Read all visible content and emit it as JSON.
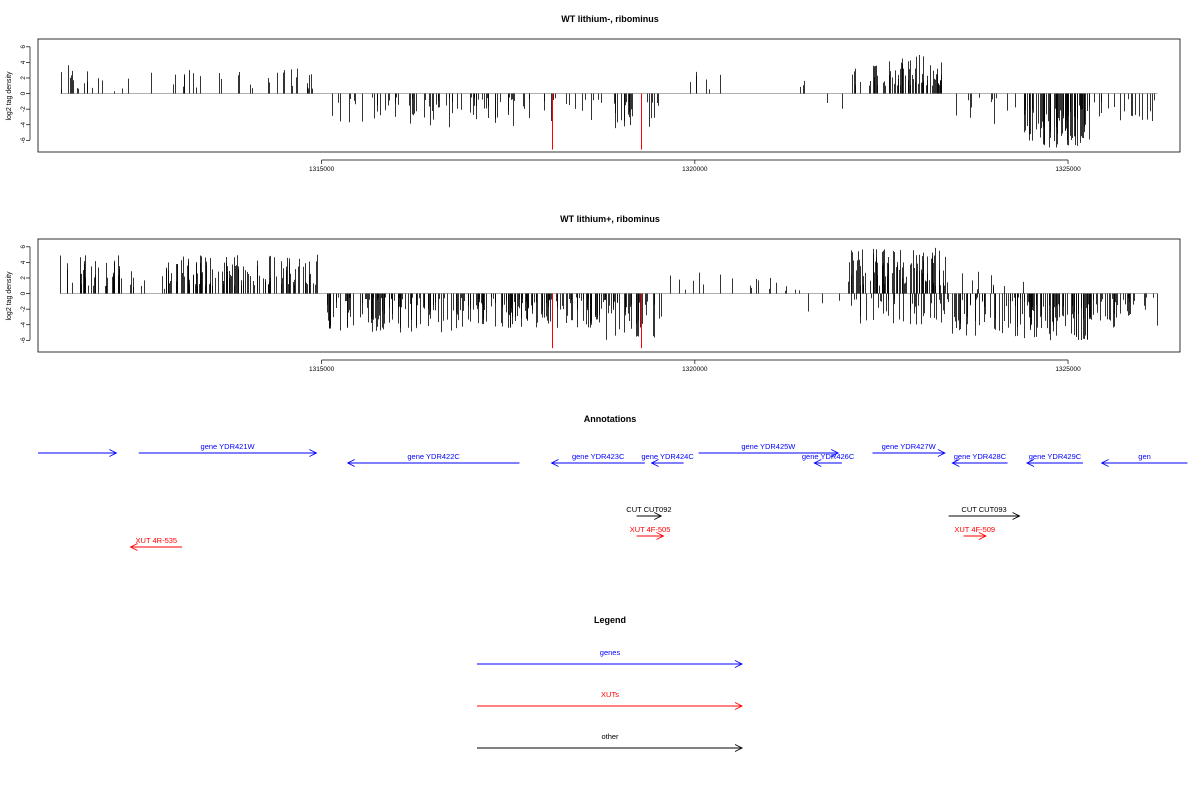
{
  "chart_data": [
    {
      "type": "bar",
      "title": "WT lithium-, ribominus",
      "xlabel": "",
      "ylabel": "log2 tag density",
      "xlim": [
        1311200,
        1326500
      ],
      "ylim": [
        -7.5,
        7
      ],
      "yticks": [
        6,
        4,
        2,
        0,
        -2,
        -4,
        -6
      ],
      "xticks": [
        1315000,
        1320000,
        1325000
      ],
      "xtick_labels": [
        "1315000",
        "1320000",
        "1325000"
      ],
      "grid": false,
      "colors": {
        "bars": "#000000",
        "highlight": "#ff0000",
        "baseline": "#808080"
      },
      "highlights": [
        {
          "x": 1318080,
          "value": -7.2
        },
        {
          "x": 1319280,
          "value": -7.2
        }
      ],
      "segments": [
        {
          "from": 1311500,
          "to": 1311750,
          "sign": 1,
          "min": 0.5,
          "max": 3.8,
          "density": 0.035
        },
        {
          "from": 1311750,
          "to": 1312000,
          "sign": 1,
          "min": 0.5,
          "max": 3.0,
          "density": 0.02
        },
        {
          "from": 1312000,
          "to": 1312700,
          "sign": 1,
          "min": 0.3,
          "max": 2.0,
          "density": 0.006
        },
        {
          "from": 1312700,
          "to": 1313700,
          "sign": 1,
          "min": 0.5,
          "max": 3.5,
          "density": 0.012
        },
        {
          "from": 1313700,
          "to": 1314200,
          "sign": 1,
          "min": 0.5,
          "max": 3.0,
          "density": 0.008
        },
        {
          "from": 1314200,
          "to": 1314950,
          "sign": 1,
          "min": 0.5,
          "max": 3.5,
          "density": 0.02
        },
        {
          "from": 1315050,
          "to": 1316000,
          "sign": -1,
          "min": 0.5,
          "max": 4.0,
          "density": 0.02
        },
        {
          "from": 1316000,
          "to": 1317800,
          "sign": -1,
          "min": 0.5,
          "max": 4.5,
          "density": 0.03
        },
        {
          "from": 1317800,
          "to": 1318800,
          "sign": -1,
          "min": 0.5,
          "max": 4.0,
          "density": 0.015
        },
        {
          "from": 1318800,
          "to": 1319550,
          "sign": -1,
          "min": 1.0,
          "max": 5.0,
          "density": 0.03
        },
        {
          "from": 1319700,
          "to": 1320800,
          "sign": 1,
          "min": 0.5,
          "max": 2.8,
          "density": 0.005
        },
        {
          "from": 1320800,
          "to": 1321500,
          "sign": 1,
          "min": 0.3,
          "max": 2.0,
          "density": 0.004
        },
        {
          "from": 1321500,
          "to": 1322050,
          "sign": -1,
          "min": 0.5,
          "max": 2.5,
          "density": 0.003
        },
        {
          "from": 1322100,
          "to": 1323300,
          "sign": 1,
          "min": 1.0,
          "max": 5.0,
          "density": 0.06
        },
        {
          "from": 1323400,
          "to": 1324300,
          "sign": -1,
          "min": 0.5,
          "max": 4.0,
          "density": 0.012
        },
        {
          "from": 1324400,
          "to": 1325300,
          "sign": -1,
          "min": 1.5,
          "max": 7.0,
          "density": 0.09
        },
        {
          "from": 1325300,
          "to": 1326200,
          "sign": -1,
          "min": 0.5,
          "max": 4.0,
          "density": 0.02
        }
      ]
    },
    {
      "type": "bar",
      "title": "WT lithium+, ribominus",
      "xlabel": "",
      "ylabel": "log2 tag density",
      "xlim": [
        1311200,
        1326500
      ],
      "ylim": [
        -7.5,
        7
      ],
      "yticks": [
        6,
        4,
        2,
        0,
        -2,
        -4,
        -6
      ],
      "xticks": [
        1315000,
        1320000,
        1325000
      ],
      "xtick_labels": [
        "1315000",
        "1320000",
        "1325000"
      ],
      "grid": false,
      "colors": {
        "bars": "#000000",
        "highlight": "#ff0000",
        "baseline": "#808080"
      },
      "highlights": [
        {
          "x": 1318080,
          "value": -7.0
        },
        {
          "x": 1319280,
          "value": -7.0
        }
      ],
      "segments": [
        {
          "from": 1311500,
          "to": 1312300,
          "sign": 1,
          "min": 0.8,
          "max": 5.0,
          "density": 0.05
        },
        {
          "from": 1312300,
          "to": 1312900,
          "sign": 1,
          "min": 0.5,
          "max": 3.5,
          "density": 0.015
        },
        {
          "from": 1312900,
          "to": 1314950,
          "sign": 1,
          "min": 1.0,
          "max": 5.0,
          "density": 0.06
        },
        {
          "from": 1315050,
          "to": 1316800,
          "sign": -1,
          "min": 0.5,
          "max": 5.0,
          "density": 0.06
        },
        {
          "from": 1316800,
          "to": 1318800,
          "sign": -1,
          "min": 0.5,
          "max": 4.5,
          "density": 0.07
        },
        {
          "from": 1318800,
          "to": 1319550,
          "sign": -1,
          "min": 1.0,
          "max": 6.0,
          "density": 0.05
        },
        {
          "from": 1319600,
          "to": 1321500,
          "sign": 1,
          "min": 0.3,
          "max": 2.8,
          "density": 0.01
        },
        {
          "from": 1321500,
          "to": 1322050,
          "sign": -1,
          "min": 0.5,
          "max": 2.5,
          "density": 0.005
        },
        {
          "from": 1322050,
          "to": 1323400,
          "sign": 1,
          "min": 1.0,
          "max": 6.0,
          "density": 0.07
        },
        {
          "from": 1322050,
          "to": 1323400,
          "sign": -1,
          "min": 0.5,
          "max": 4.0,
          "density": 0.03
        },
        {
          "from": 1323400,
          "to": 1324400,
          "sign": -1,
          "min": 0.5,
          "max": 5.5,
          "density": 0.05
        },
        {
          "from": 1323500,
          "to": 1324400,
          "sign": 1,
          "min": 0.3,
          "max": 3.0,
          "density": 0.01
        },
        {
          "from": 1324400,
          "to": 1325300,
          "sign": -1,
          "min": 1.0,
          "max": 6.0,
          "density": 0.08
        },
        {
          "from": 1325300,
          "to": 1326200,
          "sign": -1,
          "min": 0.5,
          "max": 4.5,
          "density": 0.04
        }
      ]
    }
  ],
  "annotations": {
    "title": "Annotations",
    "features": [
      {
        "label": "",
        "kind": "gene",
        "strand": "+",
        "start": 1311200,
        "end": 1312250
      },
      {
        "label": "gene YDR421W",
        "kind": "gene",
        "strand": "+",
        "start": 1312550,
        "end": 1314930
      },
      {
        "label": "gene YDR422C",
        "kind": "gene",
        "strand": "-",
        "start": 1315350,
        "end": 1317650
      },
      {
        "label": "gene YDR423C",
        "kind": "gene",
        "strand": "-",
        "start": 1318080,
        "end": 1319330
      },
      {
        "label": "gene YDR424C",
        "kind": "gene",
        "strand": "-",
        "start": 1319420,
        "end": 1319850
      },
      {
        "label": "gene YDR425W",
        "kind": "gene",
        "strand": "+",
        "start": 1320050,
        "end": 1321920
      },
      {
        "label": "gene YDR426C",
        "kind": "gene",
        "strand": "-",
        "start": 1321600,
        "end": 1321970
      },
      {
        "label": "gene YDR427W",
        "kind": "gene",
        "strand": "+",
        "start": 1322380,
        "end": 1323350
      },
      {
        "label": "gene YDR428C",
        "kind": "gene",
        "strand": "-",
        "start": 1323450,
        "end": 1324190
      },
      {
        "label": "gene YDR429C",
        "kind": "gene",
        "strand": "-",
        "start": 1324450,
        "end": 1325200
      },
      {
        "label": "gen",
        "kind": "gene",
        "strand": "-",
        "start": 1325450,
        "end": 1326600
      },
      {
        "label": "CUT CUT092",
        "kind": "other",
        "strand": "+",
        "start": 1319220,
        "end": 1319550
      },
      {
        "label": "CUT CUT093",
        "kind": "other",
        "strand": "+",
        "start": 1323400,
        "end": 1324350
      },
      {
        "label": "XUT 4F-505",
        "kind": "xut",
        "strand": "+",
        "start": 1319220,
        "end": 1319580
      },
      {
        "label": "XUT 4F-509",
        "kind": "xut",
        "strand": "+",
        "start": 1323600,
        "end": 1323900
      },
      {
        "label": "XUT 4R-535",
        "kind": "xut",
        "strand": "-",
        "start": 1312440,
        "end": 1313130
      }
    ]
  },
  "legend": {
    "title": "Legend",
    "items": [
      {
        "label": "genes",
        "color": "#0000ff"
      },
      {
        "label": "XUTs",
        "color": "#ff0000"
      },
      {
        "label": "other",
        "color": "#000000"
      }
    ]
  }
}
